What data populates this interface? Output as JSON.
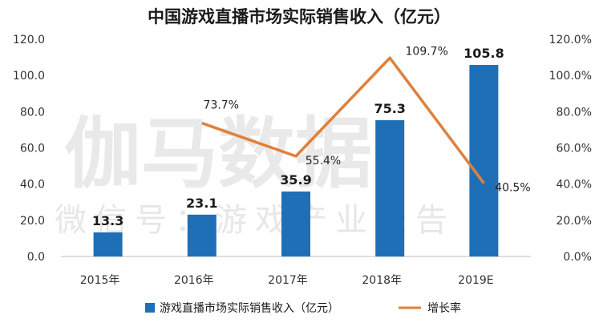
{
  "chart_data": {
    "type": "bar",
    "title": "中国游戏直播市场实际销售收入（亿元）",
    "categories": [
      "2015年",
      "2016年",
      "2017年",
      "2018年",
      "2019E"
    ],
    "series": [
      {
        "name": "游戏直播市场实际销售收入（亿元）",
        "type": "bar",
        "axis": "left",
        "color": "#1f6fb6",
        "values": [
          13.3,
          23.1,
          35.9,
          75.3,
          105.8
        ],
        "labels": [
          "13.3",
          "23.1",
          "35.9",
          "75.3",
          "105.8"
        ]
      },
      {
        "name": "增长率",
        "type": "line",
        "axis": "right",
        "color": "#e0803a",
        "values": [
          null,
          73.7,
          55.4,
          109.7,
          40.5
        ],
        "labels": [
          null,
          "73.7%",
          "55.4%",
          "109.7%",
          "40.5%"
        ]
      }
    ],
    "ylim": [
      0,
      120
    ],
    "ylim_right": [
      0,
      120
    ],
    "left_ticks": [
      "0.0",
      "20.0",
      "40.0",
      "60.0",
      "80.0",
      "100.0",
      "120.0"
    ],
    "right_ticks": [
      "0.0%",
      "20.0%",
      "40.0%",
      "60.0%",
      "80.0%",
      "100.0%",
      "120.0%"
    ],
    "grid": false,
    "legend": "bottom"
  },
  "watermark": {
    "main": "伽马数据",
    "sub": "微信号：游戏产业报告"
  }
}
